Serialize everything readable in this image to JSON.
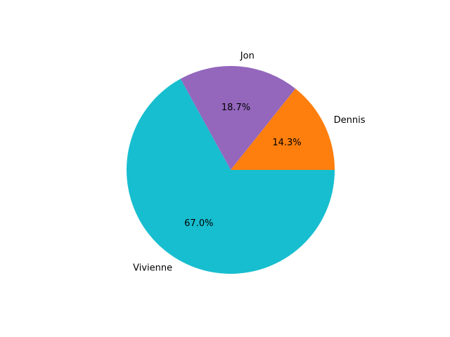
{
  "chart_data": {
    "type": "pie",
    "labels": [
      "Dennis",
      "Jon",
      "Vivienne"
    ],
    "values": [
      14.3,
      18.7,
      67.0
    ],
    "value_labels": [
      "14.3%",
      "18.7%",
      "67.0%"
    ],
    "colors": [
      "#ff7f0e",
      "#9467bd",
      "#17becf"
    ],
    "start_angle_deg": 0,
    "direction": "counterclockwise",
    "title": ""
  }
}
